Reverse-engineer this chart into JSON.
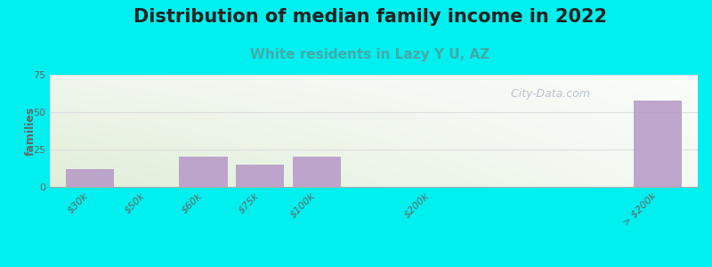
{
  "title": "Distribution of median family income in 2022",
  "subtitle": "White residents in Lazy Y U, AZ",
  "categories": [
    "$30k",
    "$50k",
    "$60k",
    "$75k",
    "$100k",
    "$200k",
    "> $200k"
  ],
  "values": [
    12,
    0,
    20,
    15,
    20,
    0,
    58
  ],
  "bar_color": "#b89cc8",
  "background_color": "#00EFEF",
  "plot_bg_top": "#f5f8f0",
  "plot_bg_bottom": "#e8f2e0",
  "plot_bg_right": "#f8f8f8",
  "ylabel": "families",
  "ylim": [
    0,
    75
  ],
  "yticks": [
    0,
    25,
    50,
    75
  ],
  "title_fontsize": 15,
  "subtitle_fontsize": 11,
  "subtitle_color": "#44AAAA",
  "watermark": "  City-Data.com",
  "grid_color": "#dddddd",
  "tick_label_color": "#666666",
  "x_positions": [
    0,
    1,
    2,
    3,
    4,
    6,
    10
  ],
  "bar_width": 0.85
}
